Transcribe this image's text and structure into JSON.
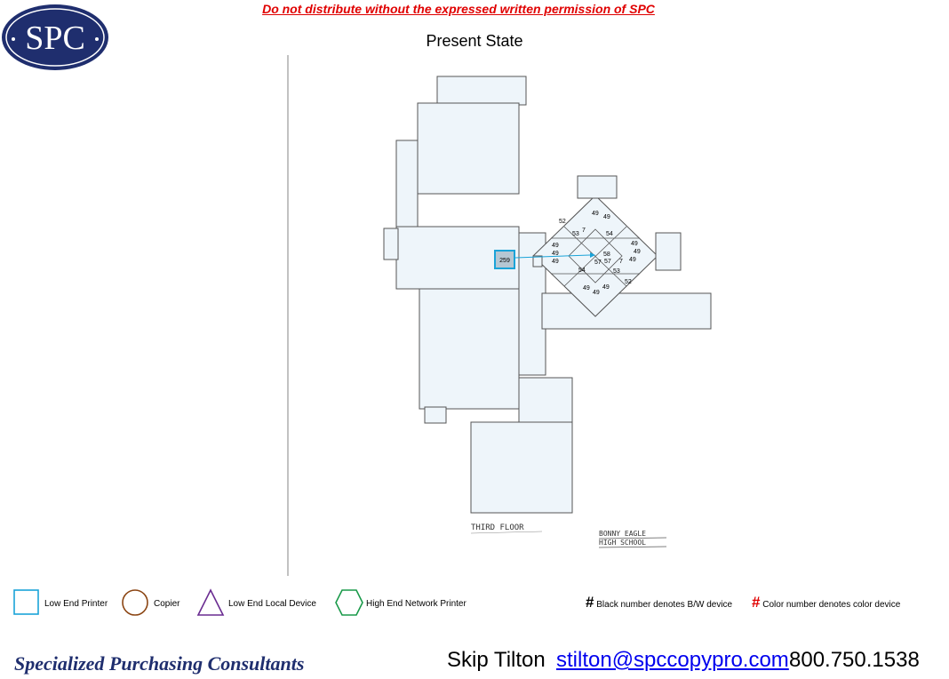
{
  "header": {
    "warning": "Do not distribute without the expressed written permission of SPC",
    "title": "Present State",
    "logo_text": "SPC"
  },
  "floor_plan": {
    "floor_label": "THIRD FLOOR",
    "school_label_line1": "BONNY EAGLE",
    "school_label_line2": "HIGH SCHOOL",
    "device_label": "259",
    "room_numbers": [
      "52",
      "49",
      "49",
      "53",
      "7",
      "54",
      "49",
      "49",
      "49",
      "49",
      "49",
      "58",
      "57",
      "57",
      "7",
      "49",
      "54",
      "53",
      "52",
      "49",
      "49",
      "49"
    ]
  },
  "legend": {
    "low_end_printer": "Low End Printer",
    "copier": "Copier",
    "low_end_local": "Low End Local Device",
    "high_end_network": "High End Network Printer",
    "hash_symbol": "#",
    "bw_note": "Black number denotes B/W device",
    "color_note": "Color number denotes color device"
  },
  "footer": {
    "company": "Specialized Purchasing Consultants",
    "name": "Skip Tilton",
    "email": "stilton@spccopypro.com",
    "phone": "800.750.1538"
  },
  "colors": {
    "warning_red": "#e00000",
    "logo_navy": "#1f2e6e",
    "printer_blue": "#1aa3d8",
    "copier_brown": "#8b4513",
    "local_purple": "#6a2c91",
    "network_green": "#1a9a4a",
    "plan_fill": "#eef5fa"
  }
}
